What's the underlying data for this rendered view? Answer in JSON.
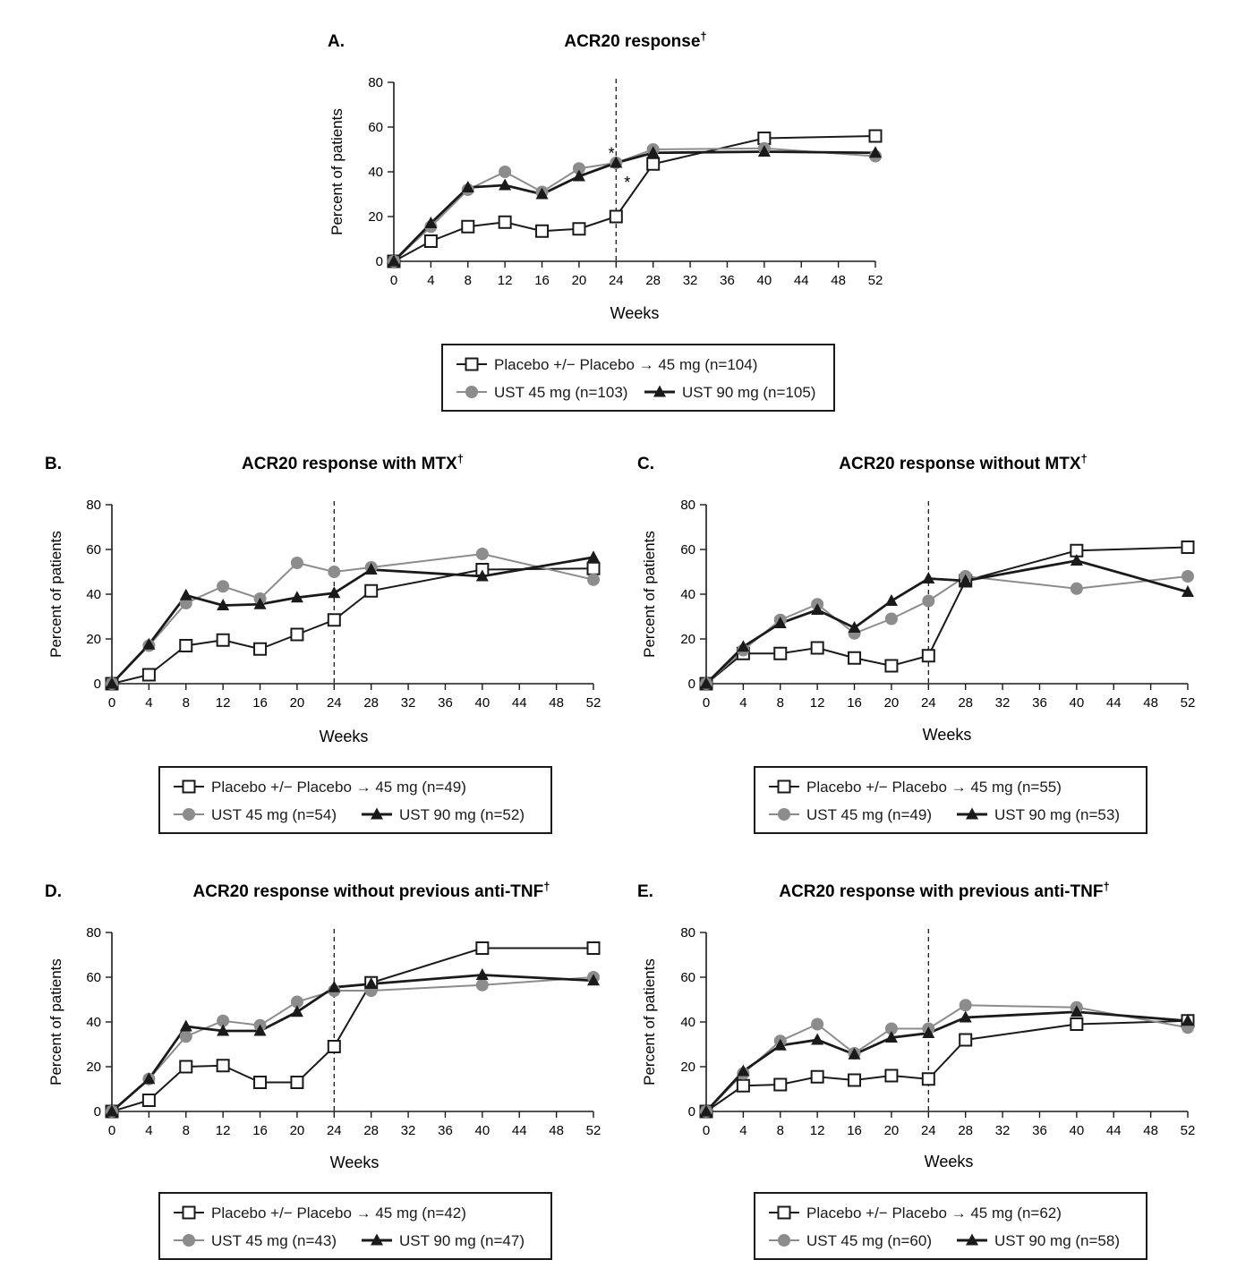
{
  "legend_labels": {
    "placebo_prefix": "Placebo +/− Placebo",
    "arrow": "→",
    "placebo_dose": "45 mg",
    "ust45_prefix": "UST 45 mg",
    "ust90_prefix": "UST 90 mg"
  },
  "series_styles": {
    "placebo": {
      "marker": "square",
      "color": "#1a1a1a",
      "fill": "#ffffff"
    },
    "ust45": {
      "marker": "circle",
      "color": "#8c8c8c"
    },
    "ust90": {
      "marker": "triangle",
      "color": "#1a1a1a"
    }
  },
  "chart_data": [
    {
      "id": "A",
      "type": "line",
      "panel_letter": "A.",
      "title": "ACR20 response",
      "title_mark": "†",
      "xlabel": "Weeks",
      "ylabel": "Percent of patients",
      "x_ticks": [
        0,
        4,
        8,
        12,
        16,
        20,
        24,
        28,
        32,
        36,
        40,
        44,
        48,
        52
      ],
      "y_ticks": [
        0,
        20,
        40,
        60,
        80
      ],
      "xlim": [
        0,
        52
      ],
      "ylim": [
        0,
        80
      ],
      "reference_line_x": 24,
      "annotations": [
        {
          "text": "*",
          "x": 23.5,
          "y": 49
        },
        {
          "text": "*",
          "x": 25.2,
          "y": 36
        }
      ],
      "legend_n": {
        "placebo": "(n=104)",
        "ust45": "(n=103)",
        "ust90": "(n=105)"
      },
      "series": [
        {
          "key": "placebo",
          "x": [
            0,
            4,
            8,
            12,
            16,
            20,
            24,
            28,
            40,
            52
          ],
          "values": [
            0,
            9,
            15.5,
            17.5,
            13.5,
            14.5,
            20,
            43.5,
            55,
            56
          ]
        },
        {
          "key": "ust45",
          "x": [
            0,
            4,
            8,
            12,
            16,
            20,
            24,
            28,
            40,
            52
          ],
          "values": [
            0,
            15.5,
            32,
            40,
            31,
            41.5,
            44,
            50,
            50.5,
            47
          ]
        },
        {
          "key": "ust90",
          "x": [
            0,
            4,
            8,
            12,
            16,
            20,
            24,
            28,
            40,
            52
          ],
          "values": [
            0,
            17,
            33,
            34,
            30,
            38,
            44,
            48.5,
            49,
            48.5
          ]
        }
      ]
    },
    {
      "id": "B",
      "type": "line",
      "panel_letter": "B.",
      "title": "ACR20 response with MTX",
      "title_mark": "†",
      "xlabel": "Weeks",
      "ylabel": "Percent of patients",
      "x_ticks": [
        0,
        4,
        8,
        12,
        16,
        20,
        24,
        28,
        32,
        36,
        40,
        44,
        48,
        52
      ],
      "y_ticks": [
        0,
        20,
        40,
        60,
        80
      ],
      "xlim": [
        0,
        52
      ],
      "ylim": [
        0,
        80
      ],
      "reference_line_x": 24,
      "annotations": [],
      "legend_n": {
        "placebo": "(n=49)",
        "ust45": "(n=54)",
        "ust90": "(n=52)"
      },
      "series": [
        {
          "key": "placebo",
          "x": [
            0,
            4,
            8,
            12,
            16,
            20,
            24,
            28,
            40,
            52
          ],
          "values": [
            0,
            4,
            17,
            19.5,
            15.5,
            22,
            28.5,
            41.5,
            51,
            51.5
          ]
        },
        {
          "key": "ust45",
          "x": [
            0,
            4,
            8,
            12,
            16,
            20,
            24,
            28,
            40,
            52
          ],
          "values": [
            0,
            17,
            36,
            43.5,
            38,
            54,
            50,
            52,
            58,
            46.5
          ]
        },
        {
          "key": "ust90",
          "x": [
            0,
            4,
            8,
            12,
            16,
            20,
            24,
            28,
            40,
            52
          ],
          "values": [
            0,
            17.5,
            39.5,
            35,
            35.5,
            38.5,
            40.5,
            51,
            48,
            56.5
          ]
        }
      ]
    },
    {
      "id": "C",
      "type": "line",
      "panel_letter": "C.",
      "title": "ACR20 response without MTX",
      "title_mark": "†",
      "xlabel": "Weeks",
      "ylabel": "Percent of patients",
      "x_ticks": [
        0,
        4,
        8,
        12,
        16,
        20,
        24,
        28,
        32,
        36,
        40,
        44,
        48,
        52
      ],
      "y_ticks": [
        0,
        20,
        40,
        60,
        80
      ],
      "xlim": [
        0,
        52
      ],
      "ylim": [
        0,
        80
      ],
      "reference_line_x": 24,
      "annotations": [],
      "legend_n": {
        "placebo": "(n=55)",
        "ust45": "(n=49)",
        "ust90": "(n=53)"
      },
      "series": [
        {
          "key": "placebo",
          "x": [
            0,
            4,
            8,
            12,
            16,
            20,
            24,
            28,
            40,
            52
          ],
          "values": [
            0,
            13.5,
            13.5,
            16,
            11.5,
            8,
            12.5,
            46,
            59.5,
            61
          ]
        },
        {
          "key": "ust45",
          "x": [
            0,
            4,
            8,
            12,
            16,
            20,
            24,
            28,
            40,
            52
          ],
          "values": [
            0,
            15,
            28.5,
            35.5,
            22.5,
            29,
            37,
            48,
            42.5,
            48
          ]
        },
        {
          "key": "ust90",
          "x": [
            0,
            4,
            8,
            12,
            16,
            20,
            24,
            28,
            40,
            52
          ],
          "values": [
            0,
            16.5,
            27,
            33,
            25,
            37,
            47,
            46,
            55,
            41
          ]
        }
      ]
    },
    {
      "id": "D",
      "type": "line",
      "panel_letter": "D.",
      "title": "ACR20 response without previous anti-TNF",
      "title_mark": "†",
      "xlabel": "Weeks",
      "ylabel": "Percent of patients",
      "x_ticks": [
        0,
        4,
        8,
        12,
        16,
        20,
        24,
        28,
        32,
        36,
        40,
        44,
        48,
        52
      ],
      "y_ticks": [
        0,
        20,
        40,
        60,
        80
      ],
      "xlim": [
        0,
        52
      ],
      "ylim": [
        0,
        80
      ],
      "reference_line_x": 24,
      "annotations": [],
      "legend_n": {
        "placebo": "(n=42)",
        "ust45": "(n=43)",
        "ust90": "(n=47)"
      },
      "series": [
        {
          "key": "placebo",
          "x": [
            0,
            4,
            8,
            12,
            16,
            20,
            24,
            28,
            40,
            52
          ],
          "values": [
            0,
            5,
            20,
            20.5,
            13,
            13,
            29,
            57.5,
            73,
            73
          ]
        },
        {
          "key": "ust45",
          "x": [
            0,
            4,
            8,
            12,
            16,
            20,
            24,
            28,
            40,
            52
          ],
          "values": [
            0,
            14.5,
            33.5,
            40.5,
            38.5,
            49,
            54,
            54,
            56.5,
            60
          ]
        },
        {
          "key": "ust90",
          "x": [
            0,
            4,
            8,
            12,
            16,
            20,
            24,
            28,
            40,
            52
          ],
          "values": [
            0,
            14.5,
            38,
            36,
            36,
            44.5,
            55.5,
            57,
            61,
            58.5
          ]
        }
      ]
    },
    {
      "id": "E",
      "type": "line",
      "panel_letter": "E.",
      "title": "ACR20 response with previous anti-TNF",
      "title_mark": "†",
      "xlabel": "Weeks",
      "ylabel": "Percent of patients",
      "x_ticks": [
        0,
        4,
        8,
        12,
        16,
        20,
        24,
        28,
        32,
        36,
        40,
        44,
        48,
        52
      ],
      "y_ticks": [
        0,
        20,
        40,
        60,
        80
      ],
      "xlim": [
        0,
        52
      ],
      "ylim": [
        0,
        80
      ],
      "reference_line_x": 24,
      "annotations": [],
      "legend_n": {
        "placebo": "(n=62)",
        "ust45": "(n=60)",
        "ust90": "(n=58)"
      },
      "series": [
        {
          "key": "placebo",
          "x": [
            0,
            4,
            8,
            12,
            16,
            20,
            24,
            28,
            40,
            52
          ],
          "values": [
            0,
            11.5,
            12,
            15.5,
            14,
            16,
            14.5,
            32,
            39,
            40.5
          ]
        },
        {
          "key": "ust45",
          "x": [
            0,
            4,
            8,
            12,
            16,
            20,
            24,
            28,
            40,
            52
          ],
          "values": [
            0,
            17,
            31.5,
            39,
            26,
            37,
            37,
            47.5,
            46.5,
            37.5
          ]
        },
        {
          "key": "ust90",
          "x": [
            0,
            4,
            8,
            12,
            16,
            20,
            24,
            28,
            40,
            52
          ],
          "values": [
            0,
            18,
            29.5,
            32,
            25.5,
            33,
            35,
            42,
            44.5,
            40.5
          ]
        }
      ]
    }
  ]
}
